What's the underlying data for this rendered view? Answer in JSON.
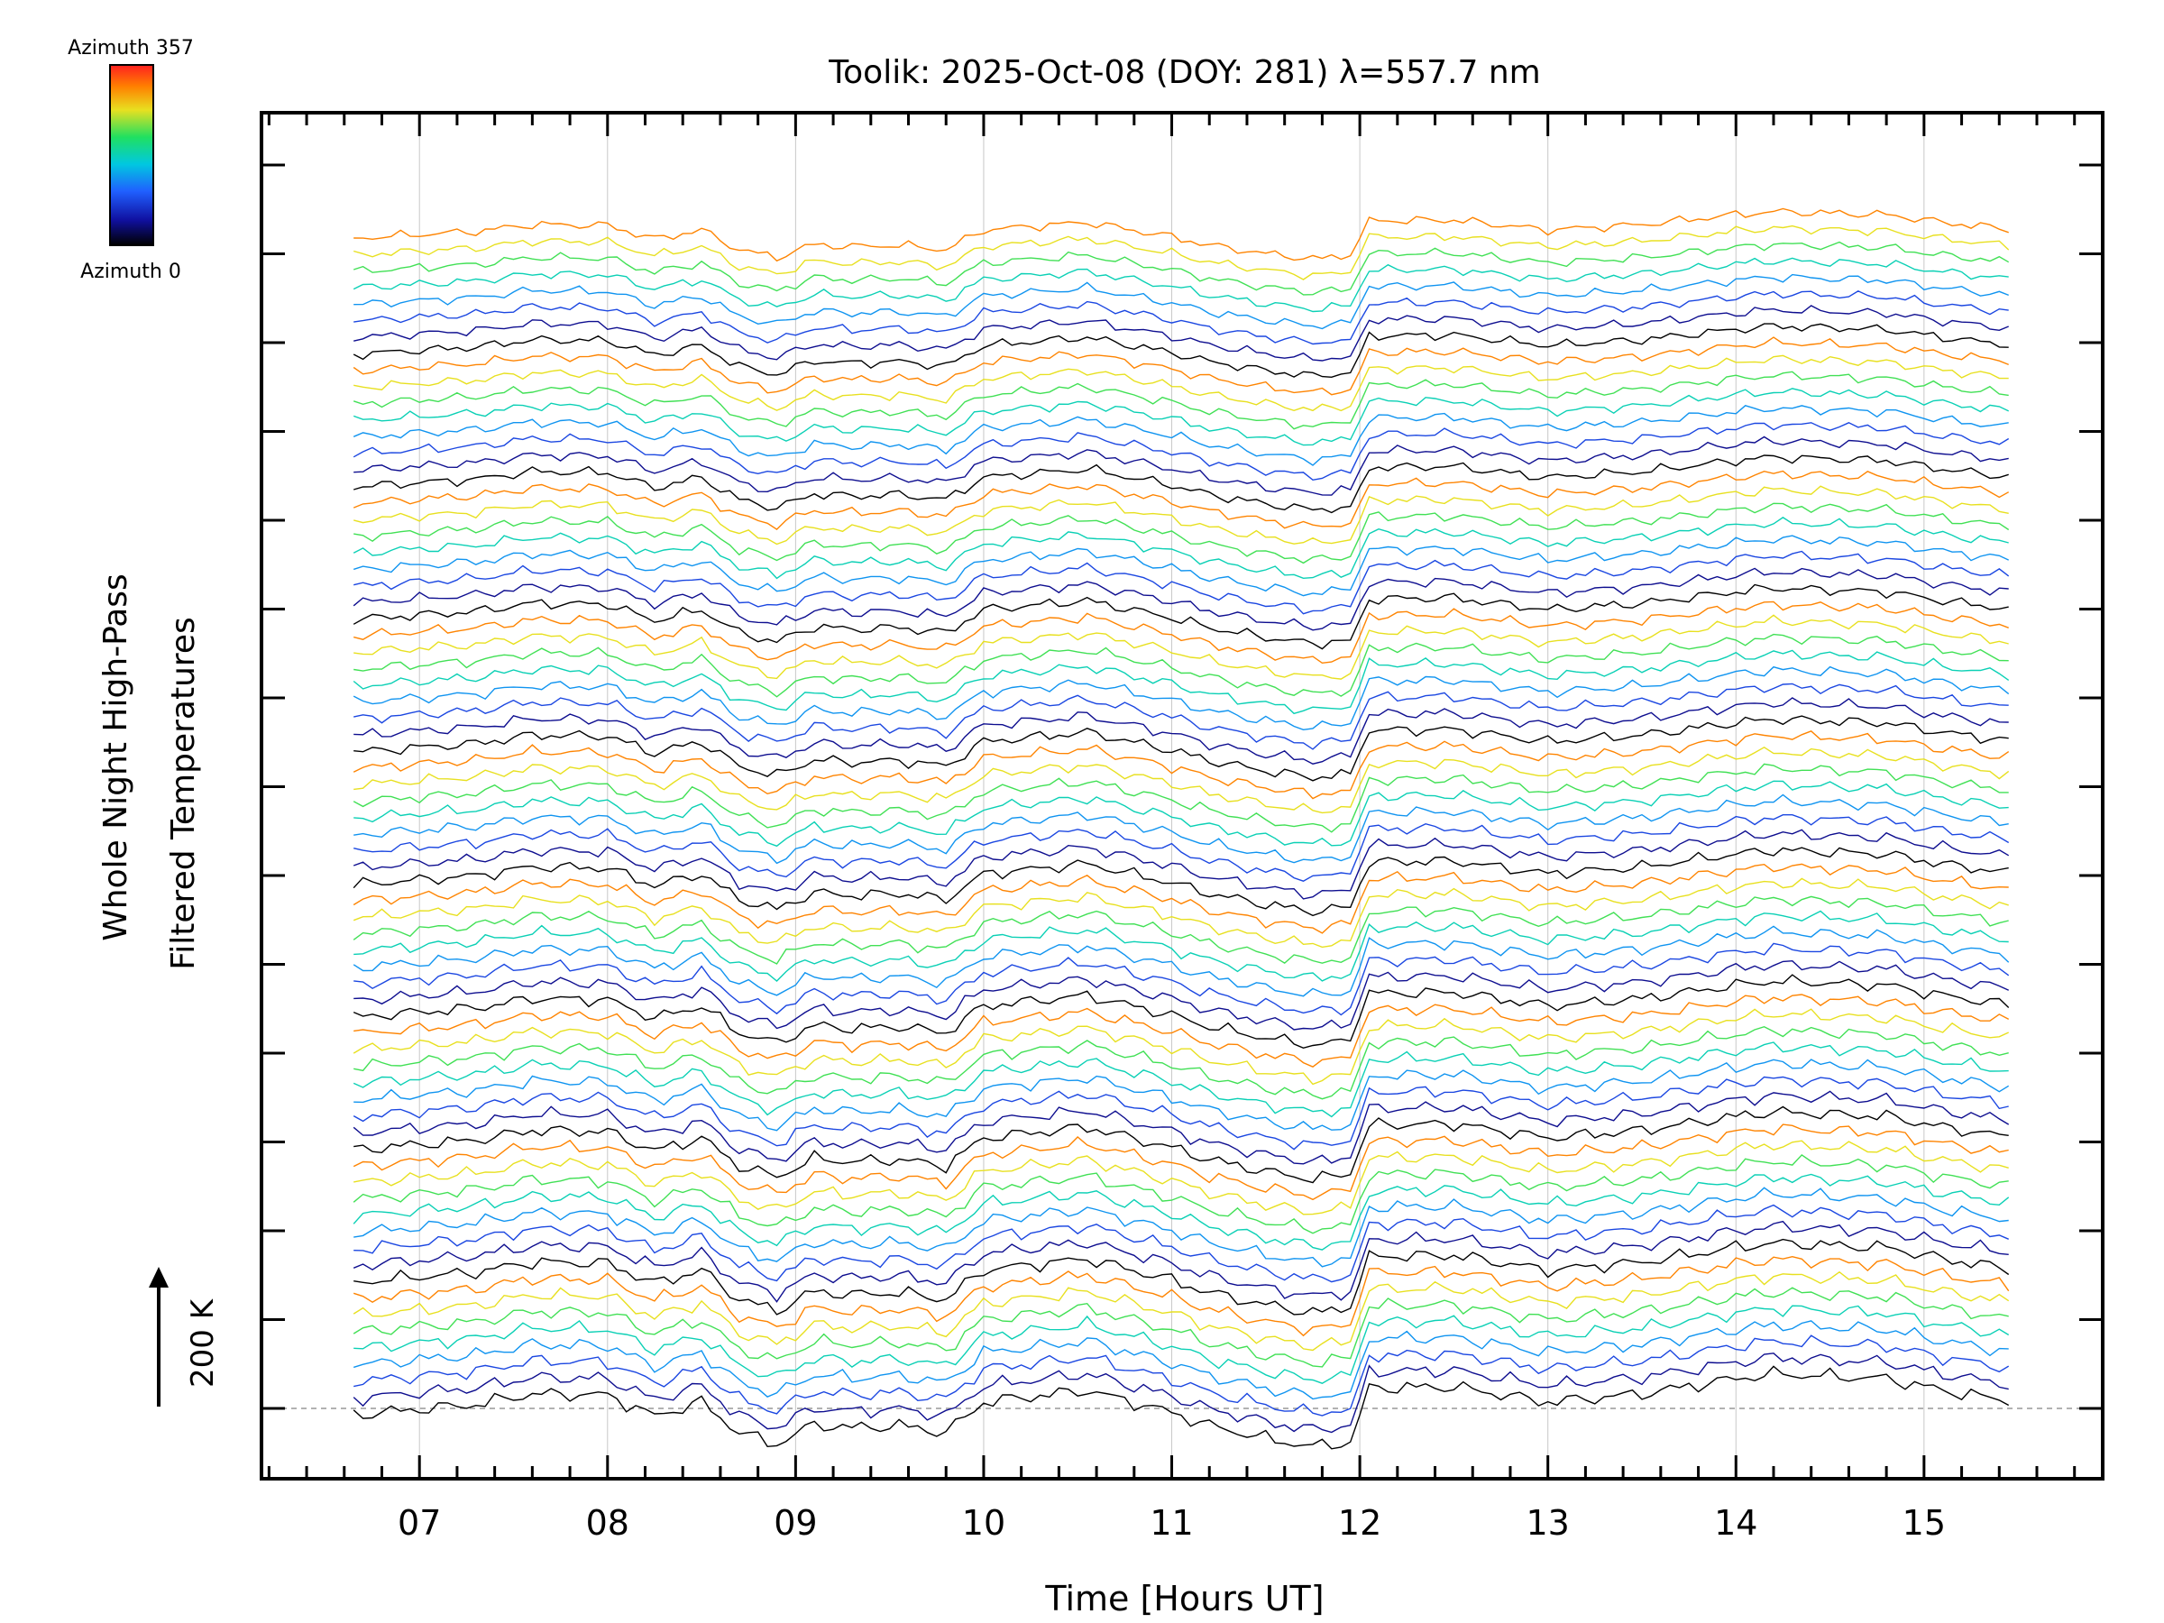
{
  "chart_data": {
    "type": "line",
    "title": "Toolik: 2025-Oct-08 (DOY: 281) λ=557.7 nm",
    "xlabel": "Time [Hours UT]",
    "ylabel_line1": "Whole Night High-Pass",
    "ylabel_line2": "Filtered Temperatures",
    "scale_label": "200 K",
    "x_ticks": [
      "07",
      "08",
      "09",
      "10",
      "11",
      "12",
      "13",
      "14",
      "15"
    ],
    "x_tick_values": [
      7,
      8,
      9,
      10,
      11,
      12,
      13,
      14,
      15
    ],
    "xlim": [
      6.16,
      15.95
    ],
    "x_range": [
      6.65,
      15.45
    ],
    "n_series": 72,
    "azimuth_range": [
      0,
      357
    ],
    "colorbar": {
      "top_label": "Azimuth 357",
      "bottom_label": "Azimuth 0",
      "colors": [
        "#000000",
        "#1010a0",
        "#2060ff",
        "#00c8e0",
        "#20e060",
        "#e8e020",
        "#ff8000",
        "#ff2020"
      ]
    },
    "trend_profile": {
      "t": [
        6.65,
        7.0,
        7.3,
        7.6,
        8.0,
        8.25,
        8.5,
        8.7,
        8.9,
        9.1,
        9.3,
        9.55,
        9.8,
        10.0,
        10.55,
        11.0,
        11.2,
        11.5,
        11.75,
        11.95,
        12.05,
        12.5,
        13.0,
        13.5,
        14.0,
        14.2,
        14.5,
        14.8,
        15.1,
        15.45
      ],
      "v": [
        -1.1,
        -0.6,
        -0.2,
        0.7,
        0.6,
        -1.2,
        0.0,
        -2.6,
        -3.6,
        -1.9,
        -2.2,
        -2.0,
        -2.6,
        0.0,
        1.0,
        -0.9,
        -2.0,
        -3.1,
        -3.8,
        -3.4,
        1.2,
        1.3,
        0.0,
        0.7,
        2.0,
        2.4,
        2.2,
        2.0,
        1.0,
        0.1
      ]
    }
  }
}
